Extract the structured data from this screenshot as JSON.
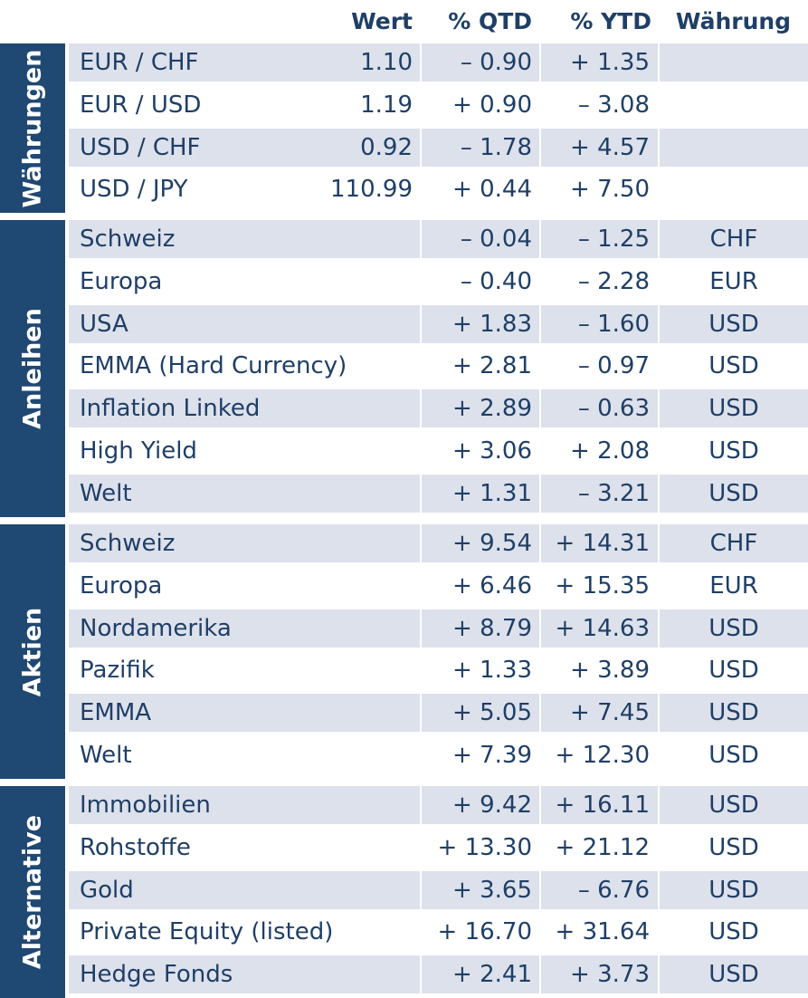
{
  "headers": {
    "wert": "Wert",
    "qtd": "% QTD",
    "ytd": "% YTD",
    "waehrung": "Währung"
  },
  "groups": [
    {
      "label": "Währungen",
      "rows": [
        {
          "name": "EUR / CHF",
          "wert": "1.10",
          "qtd": "– 0.90",
          "ytd": "+ 1.35",
          "cur": ""
        },
        {
          "name": "EUR / USD",
          "wert": "1.19",
          "qtd": "+ 0.90",
          "ytd": "– 3.08",
          "cur": ""
        },
        {
          "name": "USD / CHF",
          "wert": "0.92",
          "qtd": "– 1.78",
          "ytd": "+ 4.57",
          "cur": ""
        },
        {
          "name": "USD / JPY",
          "wert": "110.99",
          "qtd": "+ 0.44",
          "ytd": "+ 7.50",
          "cur": ""
        }
      ]
    },
    {
      "label": "Anleihen",
      "rows": [
        {
          "name": "Schweiz",
          "wert": "",
          "qtd": "– 0.04",
          "ytd": "– 1.25",
          "cur": "CHF"
        },
        {
          "name": "Europa",
          "wert": "",
          "qtd": "– 0.40",
          "ytd": "– 2.28",
          "cur": "EUR"
        },
        {
          "name": "USA",
          "wert": "",
          "qtd": "+ 1.83",
          "ytd": "– 1.60",
          "cur": "USD"
        },
        {
          "name": "EMMA (Hard Currency)",
          "wert": "",
          "qtd": "+ 2.81",
          "ytd": "– 0.97",
          "cur": "USD"
        },
        {
          "name": "Inflation Linked",
          "wert": "",
          "qtd": "+ 2.89",
          "ytd": "– 0.63",
          "cur": "USD"
        },
        {
          "name": "High Yield",
          "wert": "",
          "qtd": "+ 3.06",
          "ytd": "+ 2.08",
          "cur": "USD"
        },
        {
          "name": "Welt",
          "wert": "",
          "qtd": "+ 1.31",
          "ytd": "– 3.21",
          "cur": "USD"
        }
      ]
    },
    {
      "label": "Aktien",
      "rows": [
        {
          "name": "Schweiz",
          "wert": "",
          "qtd": "+ 9.54",
          "ytd": "+ 14.31",
          "cur": "CHF"
        },
        {
          "name": "Europa",
          "wert": "",
          "qtd": "+ 6.46",
          "ytd": "+ 15.35",
          "cur": "EUR"
        },
        {
          "name": "Nordamerika",
          "wert": "",
          "qtd": "+ 8.79",
          "ytd": "+ 14.63",
          "cur": "USD"
        },
        {
          "name": "Pazifik",
          "wert": "",
          "qtd": "+ 1.33",
          "ytd": "+ 3.89",
          "cur": "USD"
        },
        {
          "name": "EMMA",
          "wert": "",
          "qtd": "+ 5.05",
          "ytd": "+ 7.45",
          "cur": "USD"
        },
        {
          "name": "Welt",
          "wert": "",
          "qtd": "+ 7.39",
          "ytd": "+ 12.30",
          "cur": "USD"
        }
      ]
    },
    {
      "label": "Alternative",
      "rows": [
        {
          "name": "Immobilien",
          "wert": "",
          "qtd": "+ 9.42",
          "ytd": "+ 16.11",
          "cur": "USD"
        },
        {
          "name": "Rohstoffe",
          "wert": "",
          "qtd": "+ 13.30",
          "ytd": "+ 21.12",
          "cur": "USD"
        },
        {
          "name": "Gold",
          "wert": "",
          "qtd": "+ 3.65",
          "ytd": "– 6.76",
          "cur": "USD"
        },
        {
          "name": "Private Equity (listed)",
          "wert": "",
          "qtd": "+ 16.70",
          "ytd": "+ 31.64",
          "cur": "USD"
        },
        {
          "name": "Hedge Fonds",
          "wert": "",
          "qtd": "+ 2.41",
          "ytd": "+ 3.73",
          "cur": "USD"
        }
      ]
    }
  ]
}
